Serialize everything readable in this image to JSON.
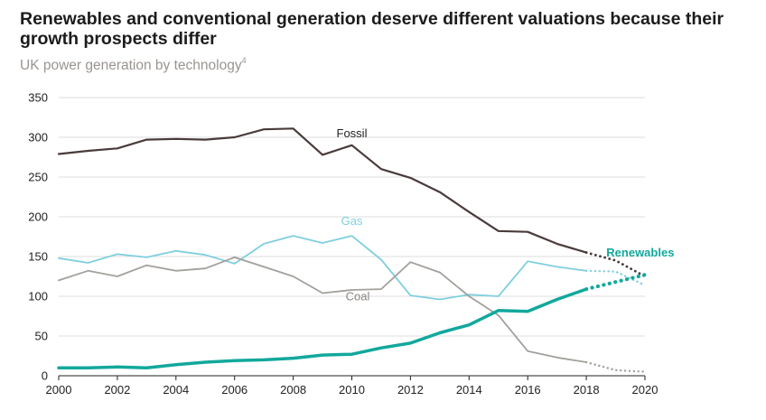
{
  "chart_data": {
    "type": "line",
    "title": "Renewables and conventional generation deserve different valuations because their growth prospects differ",
    "subtitle": "UK power generation by technology",
    "subtitle_footnote": "4",
    "xlabel": "",
    "ylabel": "",
    "xlim": [
      2000,
      2020
    ],
    "ylim": [
      0,
      350
    ],
    "yticks": [
      "0",
      "50",
      "100",
      "150",
      "200",
      "250",
      "300",
      "350"
    ],
    "xticks": [
      "2000",
      "2002",
      "2004",
      "2006",
      "2008",
      "2010",
      "2012",
      "2014",
      "2016",
      "2018",
      "2020"
    ],
    "grid": true,
    "series": [
      {
        "name": "Fossil",
        "color": "#4a3b3b",
        "x": [
          2000,
          2001,
          2002,
          2003,
          2004,
          2005,
          2006,
          2007,
          2008,
          2009,
          2010,
          2011,
          2012,
          2013,
          2014,
          2015,
          2016,
          2017,
          2018
        ],
        "values": [
          279,
          283,
          286,
          297,
          298,
          297,
          300,
          310,
          311,
          278,
          290,
          260,
          249,
          231,
          206,
          182,
          181,
          166,
          155
        ],
        "projection_x": [
          2018,
          2019,
          2020
        ],
        "projection_values": [
          155,
          145,
          125
        ]
      },
      {
        "name": "Gas",
        "color": "#7fcfdf",
        "x": [
          2000,
          2001,
          2002,
          2003,
          2004,
          2005,
          2006,
          2007,
          2008,
          2009,
          2010,
          2011,
          2012,
          2013,
          2014,
          2015,
          2016,
          2017,
          2018
        ],
        "values": [
          148,
          142,
          153,
          149,
          157,
          152,
          141,
          166,
          176,
          167,
          176,
          146,
          101,
          96,
          102,
          100,
          144,
          137,
          132
        ],
        "projection_x": [
          2018,
          2019,
          2020
        ],
        "projection_values": [
          132,
          131,
          114
        ]
      },
      {
        "name": "Coal",
        "color": "#a3a09c",
        "x": [
          2000,
          2001,
          2002,
          2003,
          2004,
          2005,
          2006,
          2007,
          2008,
          2009,
          2010,
          2011,
          2012,
          2013,
          2014,
          2015,
          2016,
          2017,
          2018
        ],
        "values": [
          120,
          132,
          125,
          139,
          132,
          135,
          149,
          137,
          125,
          104,
          108,
          109,
          143,
          130,
          100,
          76,
          31,
          23,
          17
        ],
        "projection_x": [
          2018,
          2019,
          2020
        ],
        "projection_values": [
          17,
          7,
          5
        ]
      },
      {
        "name": "Renewables",
        "color": "#12a89c",
        "x": [
          2000,
          2001,
          2002,
          2003,
          2004,
          2005,
          2006,
          2007,
          2008,
          2009,
          2010,
          2011,
          2012,
          2013,
          2014,
          2015,
          2016,
          2017,
          2018
        ],
        "values": [
          10,
          10,
          11,
          10,
          14,
          17,
          19,
          20,
          22,
          26,
          27,
          35,
          41,
          54,
          64,
          82,
          81,
          96,
          109
        ],
        "projection_x": [
          2018,
          2019,
          2020
        ],
        "projection_values": [
          109,
          118,
          127
        ]
      }
    ],
    "annotations": [
      {
        "text": "Fossil",
        "x": 2010,
        "y": 300,
        "color": "#222222"
      },
      {
        "text": "Gas",
        "x": 2010,
        "y": 190,
        "color": "#7fcfdf"
      },
      {
        "text": "Coal",
        "x": 2010.2,
        "y": 95,
        "color": "#8a8682"
      },
      {
        "text": "Renewables",
        "x": 2021,
        "y": 150,
        "color": "#12a89c"
      }
    ]
  }
}
